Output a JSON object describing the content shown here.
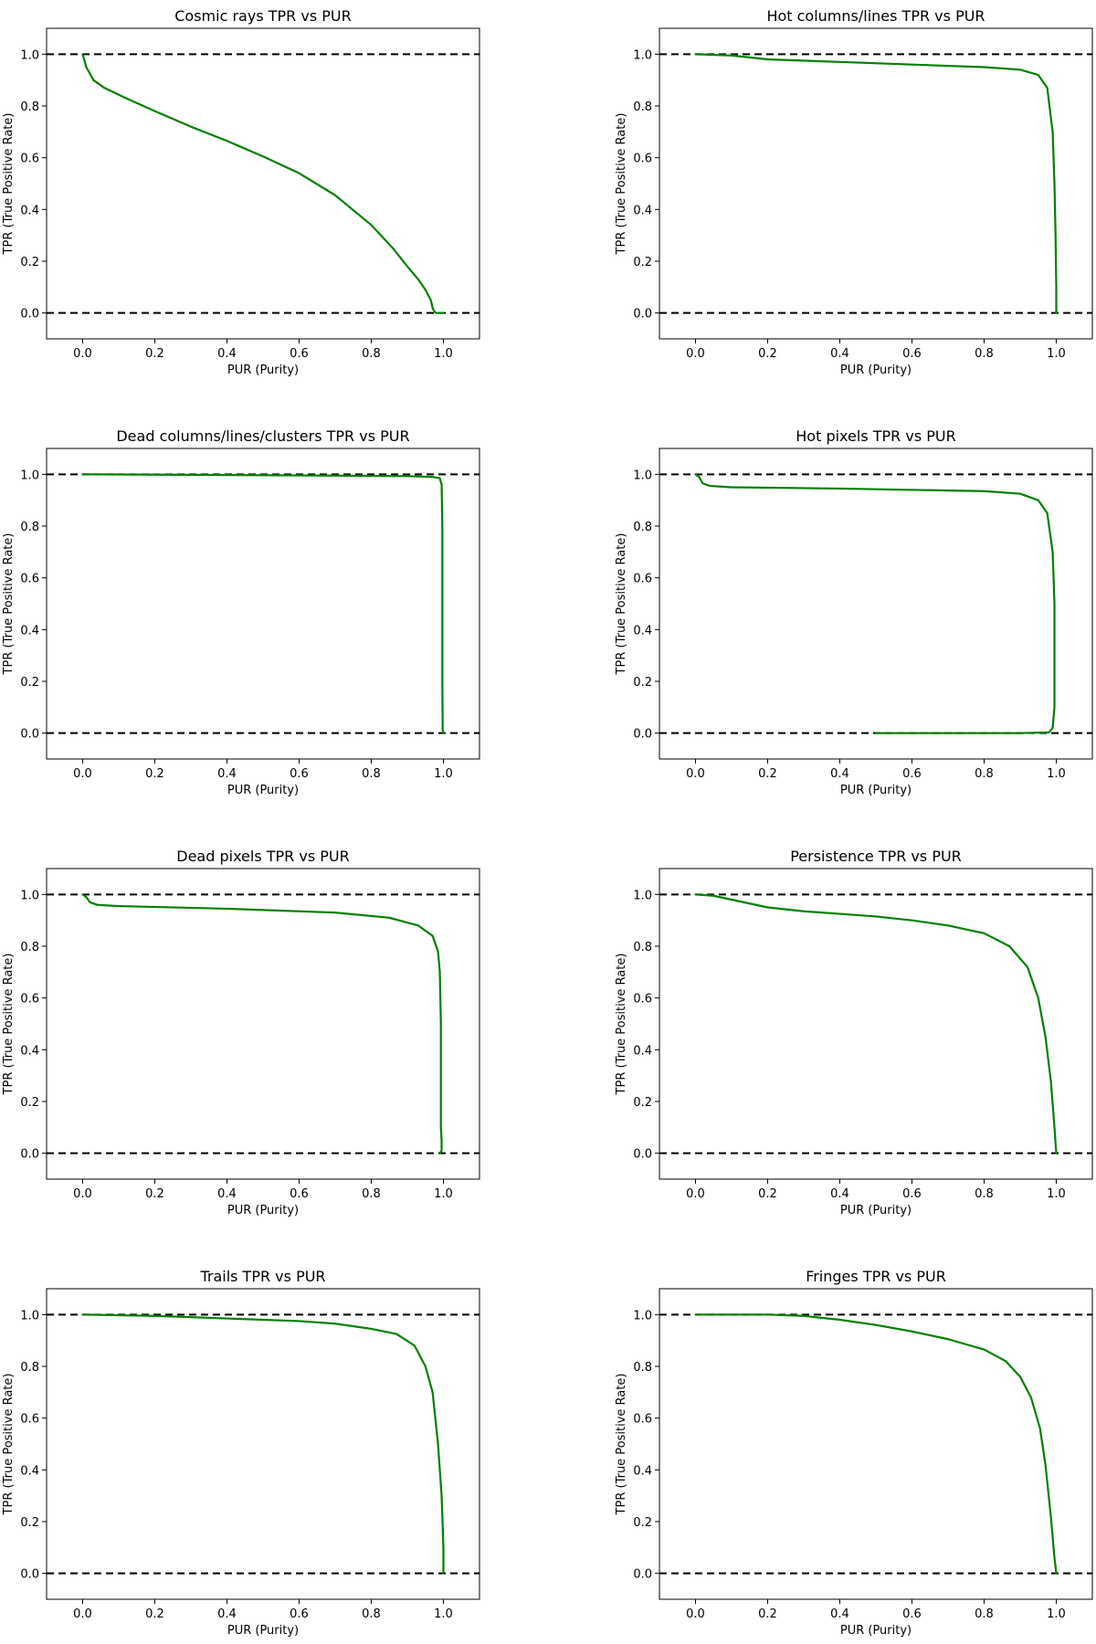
{
  "style": {
    "curve_color": "#008000",
    "reference_line_color": "#000000",
    "background": "#ffffff"
  },
  "chart_data": [
    {
      "type": "line",
      "title": "Cosmic rays TPR vs PUR",
      "xlabel": "PUR (Purity)",
      "ylabel": "TPR (True Positive Rate)",
      "xlim": [
        -0.1,
        1.1
      ],
      "ylim": [
        -0.1,
        1.1
      ],
      "xticks": [
        "0.0",
        "0.2",
        "0.4",
        "0.6",
        "0.8",
        "1.0"
      ],
      "yticks": [
        "0.0",
        "0.2",
        "0.4",
        "0.6",
        "0.8",
        "1.0"
      ],
      "hlines": [
        1.0,
        0.0
      ],
      "grid": false,
      "series": [
        {
          "color": "#008000",
          "x": [
            0.0,
            0.01,
            0.03,
            0.06,
            0.12,
            0.2,
            0.3,
            0.4,
            0.5,
            0.6,
            0.7,
            0.8,
            0.86,
            0.9,
            0.93,
            0.95,
            0.965,
            0.97,
            0.975,
            0.98,
            1.0
          ],
          "y": [
            1.0,
            0.95,
            0.9,
            0.87,
            0.83,
            0.78,
            0.72,
            0.665,
            0.605,
            0.54,
            0.455,
            0.34,
            0.25,
            0.18,
            0.13,
            0.09,
            0.05,
            0.02,
            0.005,
            0.0,
            0.0
          ]
        }
      ]
    },
    {
      "type": "line",
      "title": "Hot columns/lines TPR vs PUR",
      "xlabel": "PUR (Purity)",
      "ylabel": "TPR (True Positive Rate)",
      "xlim": [
        -0.1,
        1.1
      ],
      "ylim": [
        -0.1,
        1.1
      ],
      "xticks": [
        "0.0",
        "0.2",
        "0.4",
        "0.6",
        "0.8",
        "1.0"
      ],
      "yticks": [
        "0.0",
        "0.2",
        "0.4",
        "0.6",
        "0.8",
        "1.0"
      ],
      "hlines": [
        1.0,
        0.0
      ],
      "grid": false,
      "series": [
        {
          "color": "#008000",
          "x": [
            0.0,
            0.1,
            0.2,
            0.4,
            0.6,
            0.8,
            0.9,
            0.95,
            0.975,
            0.99,
            0.995,
            0.998,
            1.0,
            1.0
          ],
          "y": [
            1.0,
            0.995,
            0.98,
            0.97,
            0.96,
            0.95,
            0.94,
            0.92,
            0.87,
            0.7,
            0.5,
            0.3,
            0.1,
            0.0
          ]
        }
      ]
    },
    {
      "type": "line",
      "title": "Dead columns/lines/clusters TPR vs PUR",
      "xlabel": "PUR (Purity)",
      "ylabel": "TPR (True Positive Rate)",
      "xlim": [
        -0.1,
        1.1
      ],
      "ylim": [
        -0.1,
        1.1
      ],
      "xticks": [
        "0.0",
        "0.2",
        "0.4",
        "0.6",
        "0.8",
        "1.0"
      ],
      "yticks": [
        "0.0",
        "0.2",
        "0.4",
        "0.6",
        "0.8",
        "1.0"
      ],
      "hlines": [
        1.0,
        0.0
      ],
      "grid": false,
      "series": [
        {
          "color": "#008000",
          "x": [
            0.0,
            0.3,
            0.6,
            0.9,
            0.97,
            0.99,
            0.995,
            0.997,
            0.997,
            0.998,
            1.0
          ],
          "y": [
            1.0,
            0.998,
            0.996,
            0.993,
            0.99,
            0.985,
            0.96,
            0.8,
            0.2,
            0.01,
            0.0
          ]
        }
      ]
    },
    {
      "type": "line",
      "title": "Hot pixels TPR vs PUR",
      "xlabel": "PUR (Purity)",
      "ylabel": "TPR (True Positive Rate)",
      "xlim": [
        -0.1,
        1.1
      ],
      "ylim": [
        -0.1,
        1.1
      ],
      "xticks": [
        "0.0",
        "0.2",
        "0.4",
        "0.6",
        "0.8",
        "1.0"
      ],
      "yticks": [
        "0.0",
        "0.2",
        "0.4",
        "0.6",
        "0.8",
        "1.0"
      ],
      "hlines": [
        1.0,
        0.0
      ],
      "grid": false,
      "series": [
        {
          "color": "#008000",
          "x": [
            0.0,
            0.01,
            0.02,
            0.04,
            0.1,
            0.4,
            0.8,
            0.9,
            0.95,
            0.975,
            0.99,
            0.995,
            0.995,
            0.99,
            0.98,
            0.9,
            0.7,
            0.5
          ],
          "y": [
            1.0,
            0.99,
            0.965,
            0.955,
            0.95,
            0.945,
            0.935,
            0.925,
            0.9,
            0.85,
            0.7,
            0.5,
            0.1,
            0.02,
            0.003,
            0.0,
            0.0,
            0.0
          ]
        }
      ]
    },
    {
      "type": "line",
      "title": "Dead pixels TPR vs PUR",
      "xlabel": "PUR (Purity)",
      "ylabel": "TPR (True Positive Rate)",
      "xlim": [
        -0.1,
        1.1
      ],
      "ylim": [
        -0.1,
        1.1
      ],
      "xticks": [
        "0.0",
        "0.2",
        "0.4",
        "0.6",
        "0.8",
        "1.0"
      ],
      "yticks": [
        "0.0",
        "0.2",
        "0.4",
        "0.6",
        "0.8",
        "1.0"
      ],
      "hlines": [
        1.0,
        0.0
      ],
      "grid": false,
      "series": [
        {
          "color": "#008000",
          "x": [
            0.0,
            0.01,
            0.02,
            0.04,
            0.1,
            0.4,
            0.7,
            0.85,
            0.93,
            0.97,
            0.985,
            0.99,
            0.993,
            0.993,
            0.995,
            0.995,
            0.99
          ],
          "y": [
            1.0,
            0.99,
            0.97,
            0.96,
            0.955,
            0.945,
            0.93,
            0.91,
            0.88,
            0.84,
            0.78,
            0.7,
            0.5,
            0.1,
            0.05,
            0.01,
            0.0
          ]
        }
      ]
    },
    {
      "type": "line",
      "title": "Persistence TPR vs PUR",
      "xlabel": "PUR (Purity)",
      "ylabel": "TPR (True Positive Rate)",
      "xlim": [
        -0.1,
        1.1
      ],
      "ylim": [
        -0.1,
        1.1
      ],
      "xticks": [
        "0.0",
        "0.2",
        "0.4",
        "0.6",
        "0.8",
        "1.0"
      ],
      "yticks": [
        "0.0",
        "0.2",
        "0.4",
        "0.6",
        "0.8",
        "1.0"
      ],
      "hlines": [
        1.0,
        0.0
      ],
      "grid": false,
      "series": [
        {
          "color": "#008000",
          "x": [
            0.0,
            0.05,
            0.1,
            0.2,
            0.3,
            0.4,
            0.5,
            0.6,
            0.7,
            0.8,
            0.87,
            0.92,
            0.95,
            0.97,
            0.985,
            0.995,
            1.0
          ],
          "y": [
            1.0,
            0.995,
            0.98,
            0.95,
            0.935,
            0.925,
            0.915,
            0.9,
            0.88,
            0.85,
            0.8,
            0.72,
            0.6,
            0.45,
            0.28,
            0.1,
            0.0
          ]
        }
      ]
    },
    {
      "type": "line",
      "title": "Trails TPR vs PUR",
      "xlabel": "PUR (Purity)",
      "ylabel": "TPR (True Positive Rate)",
      "xlim": [
        -0.1,
        1.1
      ],
      "ylim": [
        -0.1,
        1.1
      ],
      "xticks": [
        "0.0",
        "0.2",
        "0.4",
        "0.6",
        "0.8",
        "1.0"
      ],
      "yticks": [
        "0.0",
        "0.2",
        "0.4",
        "0.6",
        "0.8",
        "1.0"
      ],
      "hlines": [
        1.0,
        0.0
      ],
      "grid": false,
      "series": [
        {
          "color": "#008000",
          "x": [
            0.0,
            0.2,
            0.4,
            0.6,
            0.7,
            0.8,
            0.87,
            0.92,
            0.95,
            0.97,
            0.985,
            0.995,
            1.0,
            1.0
          ],
          "y": [
            1.0,
            0.995,
            0.985,
            0.975,
            0.965,
            0.945,
            0.925,
            0.88,
            0.8,
            0.7,
            0.5,
            0.3,
            0.1,
            0.0
          ]
        }
      ]
    },
    {
      "type": "line",
      "title": "Fringes TPR vs PUR",
      "xlabel": "PUR (Purity)",
      "ylabel": "TPR (True Positive Rate)",
      "xlim": [
        -0.1,
        1.1
      ],
      "ylim": [
        -0.1,
        1.1
      ],
      "xticks": [
        "0.0",
        "0.2",
        "0.4",
        "0.6",
        "0.8",
        "1.0"
      ],
      "yticks": [
        "0.0",
        "0.2",
        "0.4",
        "0.6",
        "0.8",
        "1.0"
      ],
      "hlines": [
        1.0,
        0.0
      ],
      "grid": false,
      "series": [
        {
          "color": "#008000",
          "x": [
            0.0,
            0.2,
            0.3,
            0.4,
            0.5,
            0.6,
            0.7,
            0.8,
            0.86,
            0.9,
            0.93,
            0.955,
            0.97,
            0.985,
            0.995,
            1.0
          ],
          "y": [
            1.0,
            1.0,
            0.995,
            0.98,
            0.96,
            0.935,
            0.905,
            0.865,
            0.82,
            0.76,
            0.68,
            0.56,
            0.42,
            0.22,
            0.06,
            0.0
          ]
        }
      ]
    }
  ]
}
